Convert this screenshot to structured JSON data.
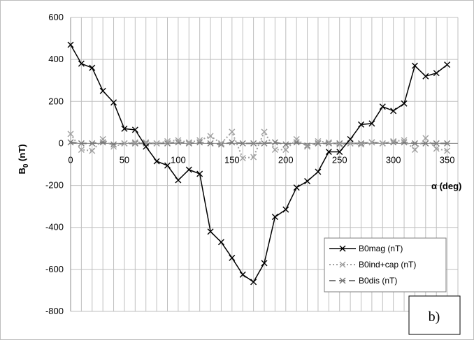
{
  "chart_data": {
    "type": "line",
    "xlabel": "α (deg)",
    "ylabel_main": "B",
    "ylabel_sub": "0",
    "ylabel_unit": " (nT)",
    "panel_label": "b)",
    "xlim": [
      0,
      360
    ],
    "ylim": [
      -800,
      600
    ],
    "xticks": [
      0,
      50,
      100,
      150,
      200,
      250,
      300,
      350
    ],
    "yticks": [
      600,
      400,
      200,
      0,
      -200,
      -400,
      -600,
      -800
    ],
    "x_gridlines": [
      0,
      10,
      20,
      30,
      40,
      50,
      60,
      70,
      80,
      90,
      100,
      110,
      120,
      130,
      140,
      150,
      160,
      170,
      180,
      190,
      200,
      210,
      220,
      230,
      240,
      250,
      260,
      270,
      280,
      290,
      300,
      310,
      320,
      330,
      340,
      350,
      360
    ],
    "grid": true,
    "legend_position": "bottom-right",
    "x": [
      0,
      10,
      20,
      30,
      40,
      50,
      60,
      70,
      80,
      90,
      100,
      110,
      120,
      130,
      140,
      150,
      160,
      170,
      180,
      190,
      200,
      210,
      220,
      230,
      240,
      250,
      260,
      270,
      280,
      290,
      300,
      310,
      320,
      330,
      340,
      350
    ],
    "series": [
      {
        "name": "B0mag (nT)",
        "color": "#000000",
        "style": "solid",
        "values": [
          470,
          380,
          360,
          250,
          195,
          70,
          65,
          -15,
          -85,
          -105,
          -175,
          -125,
          -145,
          -420,
          -470,
          -545,
          -625,
          -660,
          -570,
          -350,
          -315,
          -210,
          -180,
          -135,
          -40,
          -40,
          20,
          90,
          95,
          175,
          155,
          190,
          370,
          320,
          335,
          375
        ]
      },
      {
        "name": "B0ind+cap (nT)",
        "color": "#a0a0a0",
        "style": "dotted",
        "values": [
          45,
          -30,
          -35,
          20,
          -15,
          0,
          5,
          5,
          0,
          10,
          15,
          5,
          15,
          35,
          0,
          55,
          -70,
          -65,
          55,
          -30,
          -30,
          20,
          -15,
          10,
          5,
          -5,
          0,
          -5,
          5,
          0,
          10,
          15,
          -30,
          25,
          -25,
          -35
        ]
      },
      {
        "name": "B0dis (nT)",
        "color": "#7a7a7a",
        "style": "dashed",
        "values": [
          5,
          0,
          0,
          5,
          -5,
          0,
          0,
          0,
          0,
          0,
          5,
          0,
          5,
          0,
          -5,
          5,
          0,
          0,
          0,
          5,
          -5,
          5,
          -10,
          0,
          0,
          0,
          0,
          0,
          5,
          0,
          5,
          5,
          0,
          0,
          0,
          0
        ]
      }
    ]
  }
}
